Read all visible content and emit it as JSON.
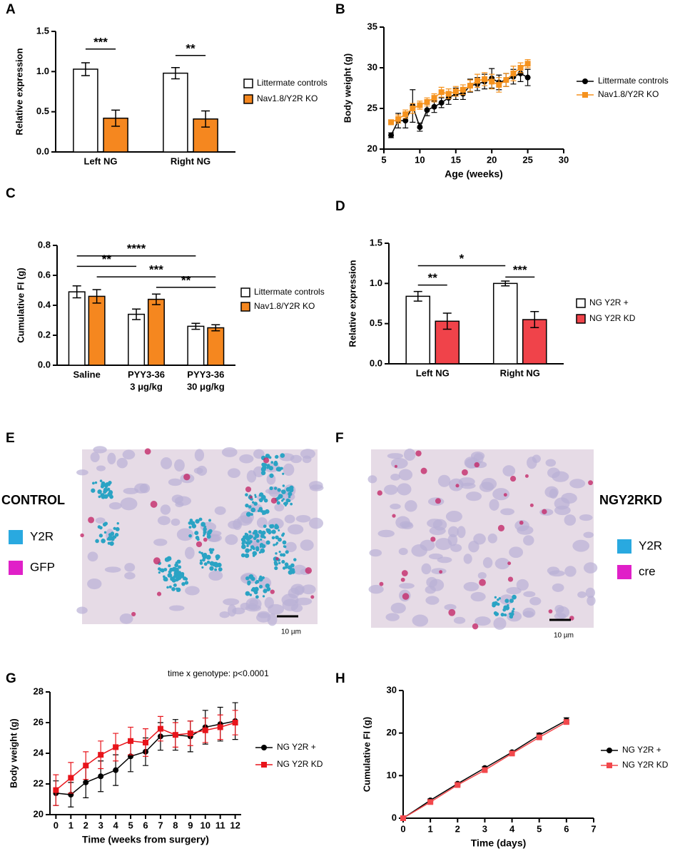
{
  "chart_data": [
    {
      "type": "bar",
      "label": "A",
      "ylabel": "Relative expression",
      "categories": [
        "Left NG",
        "Right NG"
      ],
      "series": [
        {
          "name": "Littermate controls",
          "color": "#ffffff",
          "values": [
            1.03,
            0.98
          ],
          "errors": [
            0.08,
            0.07
          ]
        },
        {
          "name": "Nav1.8/Y2R KO",
          "color": "#f5871f",
          "values": [
            0.42,
            0.41
          ],
          "errors": [
            0.1,
            0.1
          ]
        }
      ],
      "ylim": [
        0,
        1.5
      ],
      "yticks": [
        {
          "value": 0,
          "label": "0.0"
        },
        0.5,
        {
          "value": 1,
          "label": "1.0"
        },
        1.5
      ],
      "annotations": [
        "***",
        "**"
      ]
    },
    {
      "type": "line",
      "label": "B",
      "xlabel": "Age (weeks)",
      "ylabel": "Body weight (g)",
      "x": [
        6,
        7,
        8,
        9,
        10,
        11,
        12,
        13,
        14,
        15,
        16,
        17,
        18,
        19,
        20,
        21,
        22,
        23,
        24,
        25
      ],
      "series": [
        {
          "name": "Littermate controls",
          "color": "#000000",
          "marker": "circle",
          "values": [
            21.7,
            23.5,
            23.5,
            25.3,
            22.7,
            24.8,
            25.2,
            25.7,
            26.3,
            26.8,
            26.8,
            27.8,
            28,
            28.3,
            28.7,
            28.2,
            28.5,
            28.9,
            29.3,
            28.8
          ],
          "errors": [
            0.3,
            0.9,
            0.9,
            2,
            0.5,
            0.7,
            0.7,
            0.6,
            0.8,
            0.7,
            0.7,
            0.8,
            0.8,
            0.9,
            1.2,
            0.9,
            0.8,
            0.9,
            1,
            1
          ]
        },
        {
          "name": "Nav1.8/Y2R KO",
          "color": "#f5921e",
          "marker": "square",
          "values": [
            23.3,
            23.7,
            24.3,
            25,
            25.4,
            25.8,
            26.3,
            27,
            26.8,
            27.1,
            27.3,
            27.8,
            28.4,
            28.6,
            28.3,
            27.9,
            28.5,
            29.3,
            30,
            30.5
          ],
          "errors": [
            0.3,
            0.5,
            0.5,
            0.6,
            0.5,
            0.5,
            0.5,
            0.6,
            0.6,
            0.6,
            0.6,
            0.7,
            0.8,
            0.8,
            0.9,
            0.9,
            0.8,
            0.9,
            0.6,
            0.5
          ]
        }
      ],
      "xlim": [
        5,
        30
      ],
      "xticks": [
        5,
        10,
        15,
        20,
        25,
        30
      ],
      "ylim": [
        20,
        35
      ],
      "yticks": [
        20,
        25,
        30,
        35
      ]
    },
    {
      "type": "bar",
      "label": "C",
      "ylabel": "Cumulative FI (g)",
      "categories": [
        "Saline",
        [
          "PYY3-36",
          "3 μg/kg"
        ],
        [
          "PYY3-36",
          "30 μg/kg"
        ]
      ],
      "series": [
        {
          "name": "Littermate controls",
          "color": "#ffffff",
          "values": [
            0.49,
            0.34,
            0.26
          ],
          "errors": [
            0.04,
            0.035,
            0.02
          ]
        },
        {
          "name": "Nav1.8/Y2R KO",
          "color": "#f5871f",
          "values": [
            0.46,
            0.44,
            0.25
          ],
          "errors": [
            0.045,
            0.035,
            0.02
          ]
        }
      ],
      "ylim": [
        0,
        0.8
      ],
      "yticks": [
        {
          "value": 0,
          "label": "0.0"
        },
        0.2,
        0.4,
        0.6,
        0.8
      ],
      "annotations": [
        "**",
        "****",
        "***",
        "**"
      ]
    },
    {
      "type": "bar",
      "label": "D",
      "ylabel": "Relative expression",
      "categories": [
        "Left NG",
        "Right NG"
      ],
      "series": [
        {
          "name": "NG Y2R +",
          "color": "#ffffff",
          "values": [
            0.84,
            1.0
          ],
          "errors": [
            0.06,
            0.03
          ]
        },
        {
          "name": "NG Y2R KD",
          "color": "#f0434a",
          "values": [
            0.53,
            0.55
          ],
          "errors": [
            0.1,
            0.1
          ]
        }
      ],
      "ylim": [
        0,
        1.5
      ],
      "yticks": [
        {
          "value": 0,
          "label": "0.0"
        },
        0.5,
        {
          "value": 1,
          "label": "1.0"
        },
        1.5
      ],
      "annotations": [
        "*",
        "**",
        "***"
      ]
    },
    {
      "type": "line",
      "label": "G",
      "xlabel": "Time (weeks from surgery)",
      "ylabel": "Body weight (g)",
      "annotations": [
        "time x genotype: p<0.0001"
      ],
      "x": [
        0,
        1,
        2,
        3,
        4,
        5,
        6,
        7,
        8,
        9,
        10,
        11,
        12
      ],
      "series": [
        {
          "name": "NG Y2R +",
          "color": "#000000",
          "marker": "circle",
          "values": [
            21.4,
            21.3,
            22.1,
            22.5,
            22.9,
            23.8,
            24.1,
            25.1,
            25.2,
            25.1,
            25.7,
            25.9,
            26.1
          ],
          "errors": [
            0.8,
            0.8,
            1,
            1,
            1,
            1,
            0.9,
            0.9,
            1,
            1,
            1.1,
            1.1,
            1.2
          ]
        },
        {
          "name": "NG Y2R KD",
          "color": "#e8141b",
          "marker": "square",
          "values": [
            21.6,
            22.4,
            23.2,
            23.9,
            24.4,
            24.8,
            24.7,
            25.6,
            25.2,
            25.3,
            25.5,
            25.7,
            26.0
          ],
          "errors": [
            1,
            1,
            0.9,
            0.9,
            0.9,
            0.9,
            0.9,
            0.8,
            0.8,
            0.8,
            0.8,
            0.8,
            0.8
          ]
        }
      ],
      "xlim": [
        -0.4,
        12.4
      ],
      "xticks": [
        0,
        1,
        2,
        3,
        4,
        5,
        6,
        7,
        8,
        9,
        10,
        11,
        12
      ],
      "ylim": [
        20,
        28
      ],
      "yticks": [
        20,
        22,
        24,
        26,
        28
      ]
    },
    {
      "type": "line",
      "label": "H",
      "xlabel": "Time (days)",
      "ylabel": "Cumulative FI (g)",
      "x": [
        0,
        1,
        2,
        3,
        4,
        5,
        6
      ],
      "series": [
        {
          "name": "NG Y2R +",
          "color": "#000000",
          "marker": "circle",
          "values": [
            0,
            4.2,
            8.1,
            11.8,
            15.5,
            19.5,
            23
          ],
          "errors": [
            0.2,
            0.3,
            0.3,
            0.3,
            0.3,
            0.5,
            0.6
          ]
        },
        {
          "name": "NG Y2R KD",
          "color": "#f2484c",
          "marker": "square",
          "values": [
            0,
            3.8,
            7.8,
            11.3,
            15.2,
            19.0,
            22.6
          ],
          "errors": [
            0.2,
            0.3,
            0.3,
            0.3,
            0.3,
            0.4,
            0.5
          ]
        }
      ],
      "xlim": [
        0,
        7
      ],
      "xticks": [
        0,
        1,
        2,
        3,
        4,
        5,
        6,
        7
      ],
      "ylim": [
        0,
        30
      ],
      "yticks": [
        0,
        10,
        20,
        30
      ]
    }
  ],
  "images": [
    {
      "label": "E",
      "title": "CONTROL",
      "legend": [
        "Y2R",
        "GFP"
      ],
      "legend_colors": [
        "#29a9e0",
        "#e020c8"
      ],
      "scale": "10 µm"
    },
    {
      "label": "F",
      "title": "NGY2RKD",
      "legend": [
        "Y2R",
        "cre"
      ],
      "legend_colors": [
        "#29a9e0",
        "#e020c8"
      ],
      "scale": "10 µm"
    }
  ]
}
